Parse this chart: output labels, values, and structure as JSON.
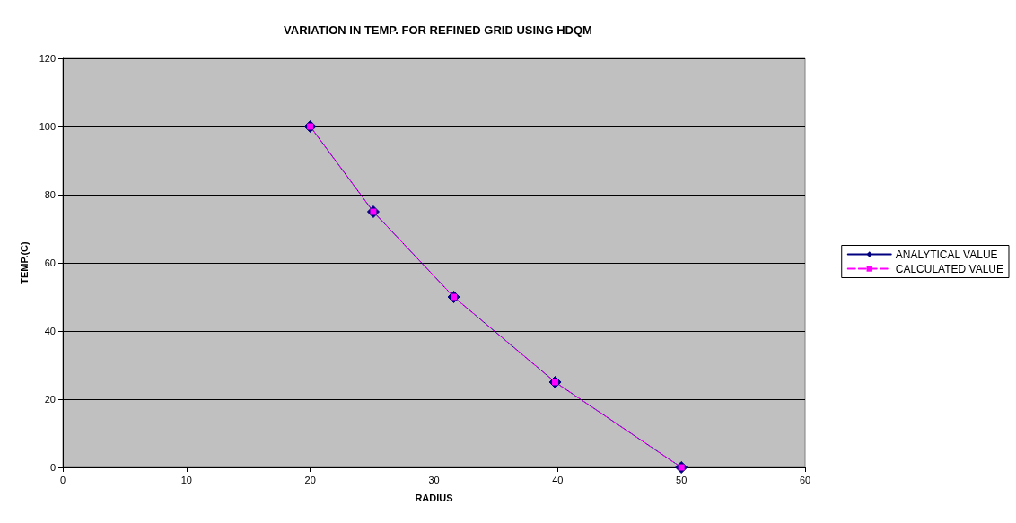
{
  "chart_data": {
    "type": "line",
    "title": "VARIATION IN TEMP. FOR REFINED GRID USING HDQM",
    "xlabel": "RADIUS",
    "ylabel": "TEMP.(C)",
    "x": [
      20,
      25.1,
      31.6,
      39.8,
      50
    ],
    "series": [
      {
        "name": "ANALYTICAL VALUE",
        "color": "#000080",
        "values": [
          100,
          75,
          50,
          25,
          0
        ],
        "marker": "diamond",
        "line_style": "solid"
      },
      {
        "name": "CALCULATED VALUE",
        "color": "#ff00ff",
        "values": [
          100,
          75,
          50,
          25,
          0
        ],
        "marker": "square",
        "line_style": "dashed"
      }
    ],
    "xlim": [
      0,
      60
    ],
    "xticks": [
      0,
      10,
      20,
      30,
      40,
      50,
      60
    ],
    "ylim": [
      0,
      120
    ],
    "yticks": [
      0,
      20,
      40,
      60,
      80,
      100,
      120
    ],
    "grid": "y",
    "legend": "right"
  }
}
